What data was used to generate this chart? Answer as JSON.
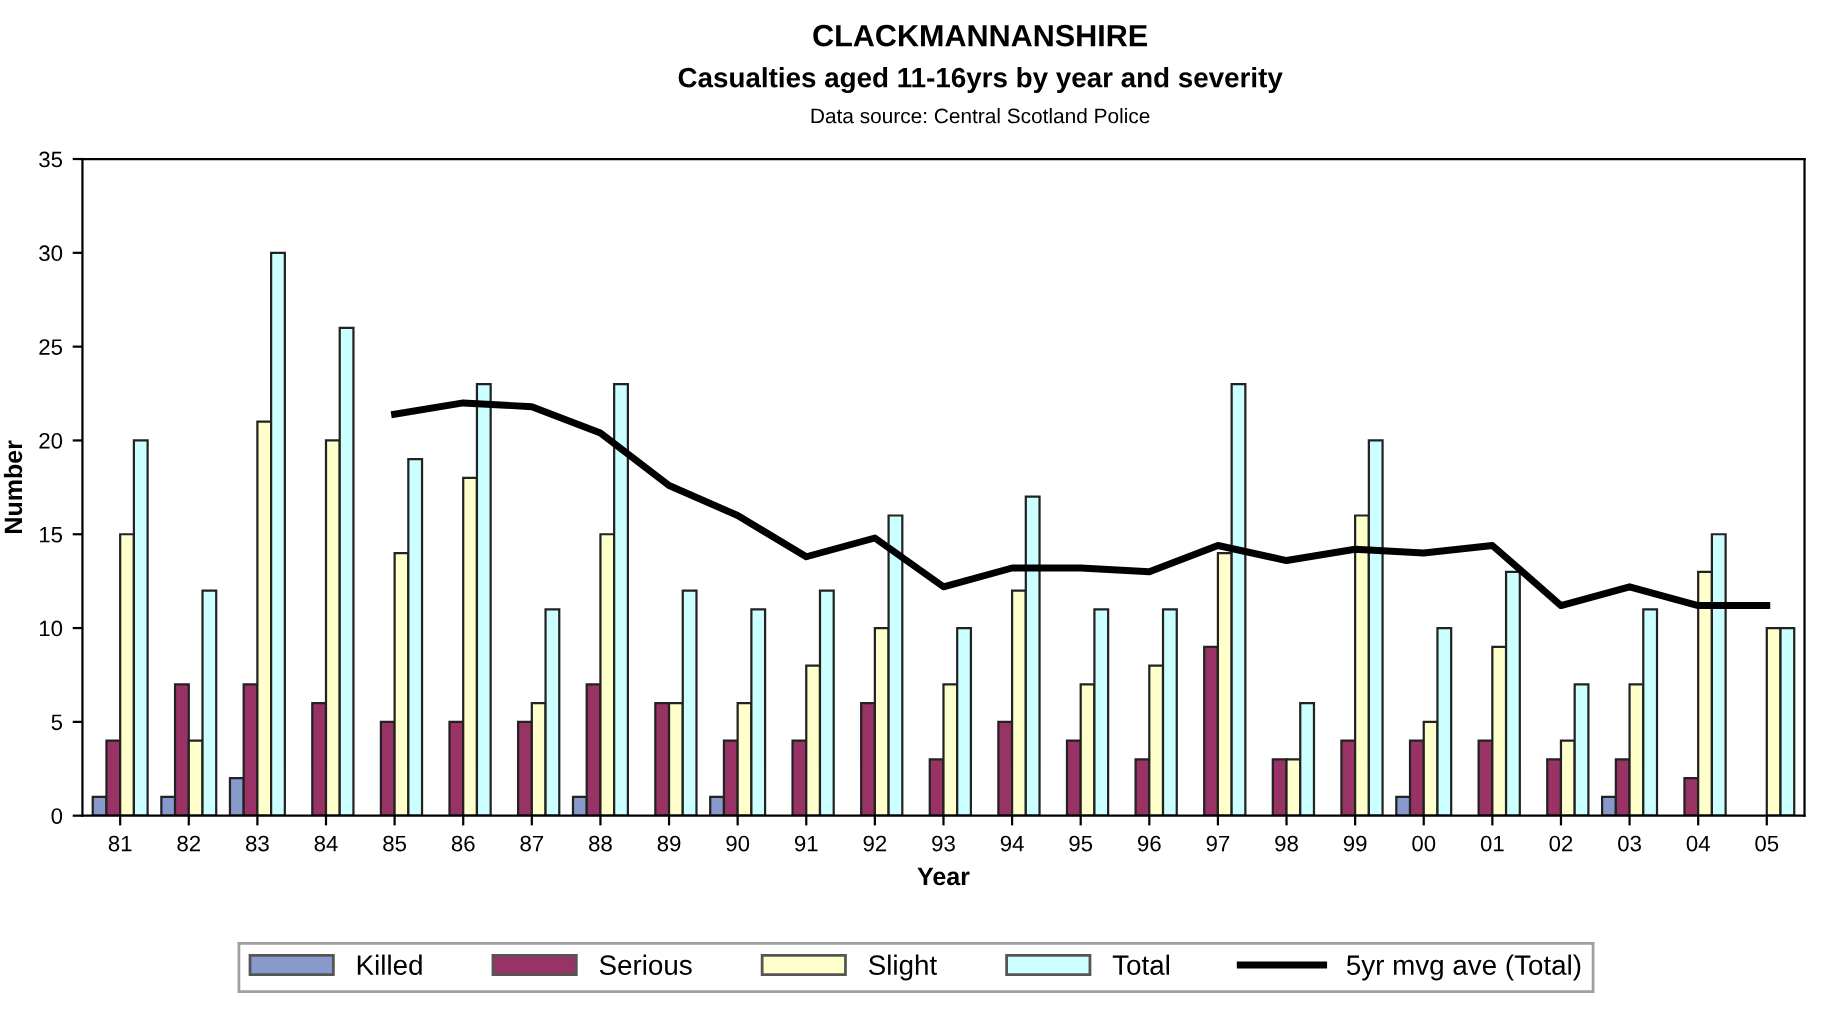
{
  "chart_data": {
    "type": "bar",
    "title": "CLACKMANNANSHIRE",
    "subtitle": "Casualties aged 11-16yrs by year and severity",
    "annotations": [
      "Data source: Central Scotland Police"
    ],
    "xlabel": "Year",
    "ylabel": "Number",
    "categories": [
      "81",
      "82",
      "83",
      "84",
      "85",
      "86",
      "87",
      "88",
      "89",
      "90",
      "91",
      "92",
      "93",
      "94",
      "95",
      "96",
      "97",
      "98",
      "99",
      "00",
      "01",
      "02",
      "03",
      "04",
      "05"
    ],
    "series": [
      {
        "name": "Killed",
        "color": "#8899cc",
        "values": [
          1,
          1,
          2,
          0,
          0,
          0,
          0,
          1,
          0,
          1,
          0,
          0,
          0,
          0,
          0,
          0,
          0,
          0,
          0,
          1,
          0,
          0,
          1,
          0,
          0
        ]
      },
      {
        "name": "Serious",
        "color": "#993366",
        "values": [
          4,
          7,
          7,
          6,
          5,
          5,
          5,
          7,
          6,
          4,
          4,
          6,
          3,
          5,
          4,
          3,
          9,
          3,
          4,
          4,
          4,
          3,
          3,
          2,
          0
        ]
      },
      {
        "name": "Slight",
        "color": "#ffffcc",
        "values": [
          15,
          4,
          21,
          20,
          14,
          18,
          6,
          15,
          6,
          6,
          8,
          10,
          7,
          12,
          7,
          8,
          14,
          3,
          16,
          5,
          9,
          4,
          7,
          13,
          10
        ]
      },
      {
        "name": "Total",
        "color": "#ccffff",
        "values": [
          20,
          12,
          30,
          26,
          19,
          23,
          11,
          23,
          12,
          11,
          12,
          16,
          10,
          17,
          11,
          11,
          23,
          6,
          20,
          10,
          13,
          7,
          11,
          15,
          10
        ]
      },
      {
        "name": "5yr mvg ave (Total)",
        "type": "line",
        "color": "#000000",
        "values": [
          null,
          null,
          null,
          null,
          21.4,
          22,
          21.8,
          20.4,
          17.6,
          16,
          13.8,
          14.8,
          12.2,
          13.2,
          13.2,
          13,
          14.4,
          13.6,
          14.2,
          14,
          14.4,
          11.2,
          12.2,
          11.2,
          11.2
        ]
      }
    ],
    "ylim": [
      0,
      35
    ],
    "yticks": [
      0,
      5,
      10,
      15,
      20,
      25,
      30,
      35
    ],
    "grid": false,
    "legend": "bottom"
  }
}
